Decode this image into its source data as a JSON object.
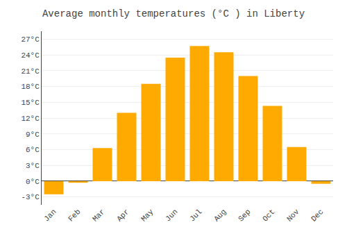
{
  "chart_data": {
    "type": "bar",
    "title": "Average monthly temperatures (°C ) in Liberty",
    "categories": [
      "Jan",
      "Feb",
      "Mar",
      "Apr",
      "May",
      "Jun",
      "Jul",
      "Aug",
      "Sep",
      "Oct",
      "Nov",
      "Dec"
    ],
    "values": [
      -2.5,
      -0.3,
      6.3,
      13.0,
      18.5,
      23.5,
      25.7,
      24.5,
      20.0,
      14.3,
      6.5,
      -0.5
    ],
    "color": "#FFAA00",
    "ylim": [
      -4.5,
      28.5
    ],
    "yticks": [
      {
        "value": -3,
        "label": "-3°C"
      },
      {
        "value": 0,
        "label": "0°C"
      },
      {
        "value": 3,
        "label": "3°C"
      },
      {
        "value": 6,
        "label": "6°C"
      },
      {
        "value": 9,
        "label": "9°C"
      },
      {
        "value": 12,
        "label": "12°C"
      },
      {
        "value": 15,
        "label": "15°C"
      },
      {
        "value": 18,
        "label": "18°C"
      },
      {
        "value": 21,
        "label": "21°C"
      },
      {
        "value": 24,
        "label": "24°C"
      },
      {
        "value": 27,
        "label": "27°C"
      }
    ],
    "grid": true
  }
}
